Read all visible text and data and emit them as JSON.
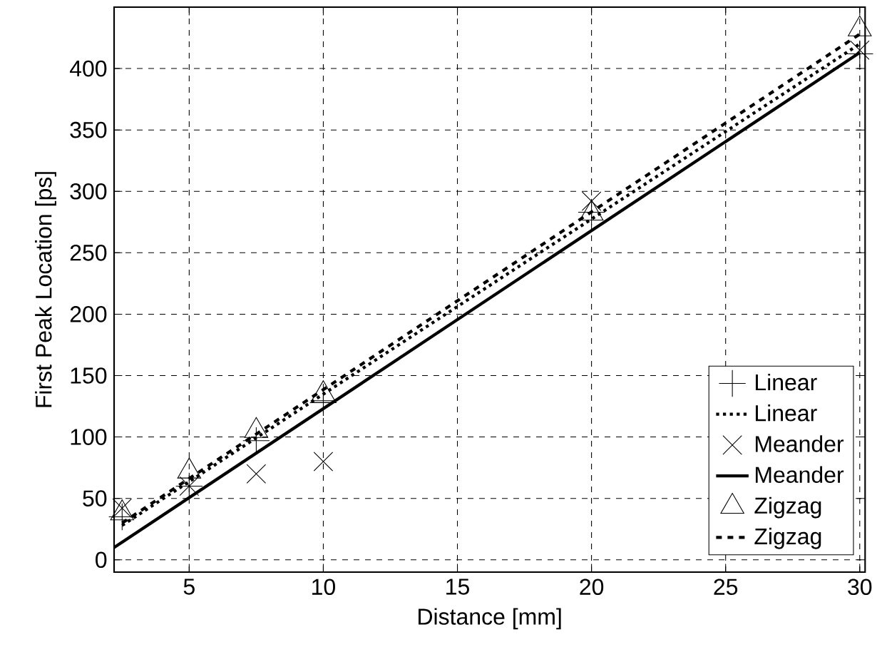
{
  "chart_data": {
    "type": "line",
    "xlabel": "Distance [mm]",
    "ylabel": "First Peak Location [ps]",
    "xlim": [
      2.2,
      30.2
    ],
    "ylim": [
      -10,
      450
    ],
    "xticks": [
      5,
      10,
      15,
      20,
      25,
      30
    ],
    "yticks": [
      0,
      50,
      100,
      150,
      200,
      250,
      300,
      350,
      400
    ],
    "grid": true,
    "legend": "bottom right",
    "series": [
      {
        "name": "Linear",
        "type": "scatter",
        "marker": "cross",
        "color": "#000000",
        "x": [
          2.5,
          5,
          7.5,
          10,
          20,
          30
        ],
        "values": [
          35,
          60,
          97,
          128,
          283,
          412
        ]
      },
      {
        "name": "Linear",
        "marker": "none",
        "line_style": "dotted",
        "color": "#000000",
        "x": [
          2.5,
          30
        ],
        "values": [
          28,
          420
        ]
      },
      {
        "name": "Meander",
        "type": "scatter",
        "marker": "x",
        "color": "#000000",
        "x": [
          2.5,
          5,
          7.5,
          10,
          20,
          30
        ],
        "values": [
          42,
          60,
          70,
          80,
          292,
          415
        ]
      },
      {
        "name": "Meander",
        "marker": "none",
        "line_style": "solid",
        "color": "#000000",
        "x": [
          2.2,
          30
        ],
        "values": [
          10,
          413
        ]
      },
      {
        "name": "Zigzag",
        "type": "scatter",
        "marker": "triangle",
        "color": "#000000",
        "x": [
          2.5,
          5,
          7.5,
          10,
          20,
          30
        ],
        "values": [
          38,
          72,
          105,
          135,
          282,
          432
        ]
      },
      {
        "name": "Zigzag",
        "marker": "none",
        "line_style": "dashed",
        "color": "#000000",
        "x": [
          2.5,
          30
        ],
        "values": [
          30,
          428
        ]
      }
    ]
  }
}
